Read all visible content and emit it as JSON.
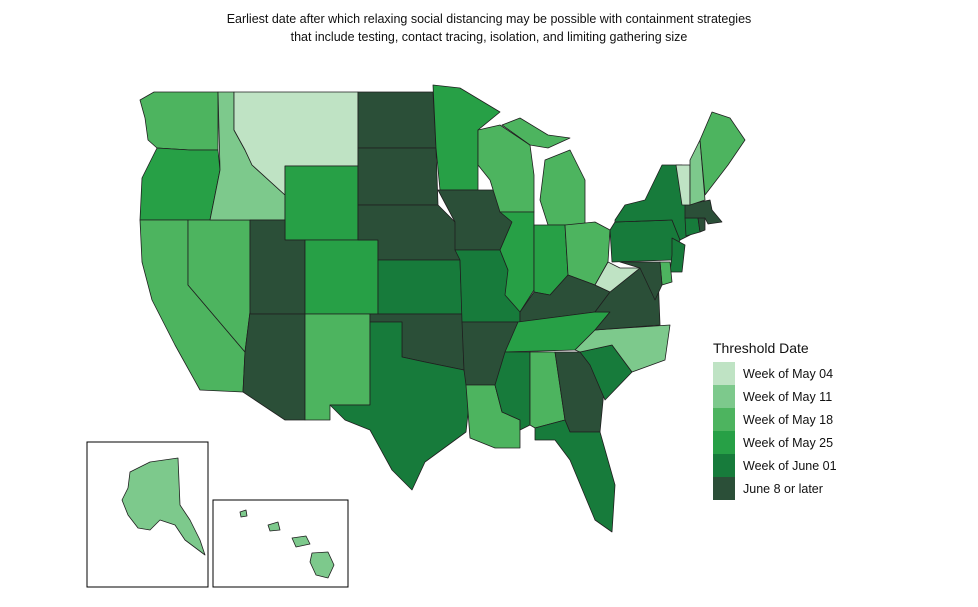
{
  "title": {
    "line1": "Earliest date after which relaxing social distancing may be possible with containment strategies",
    "line2": "that include testing, contact tracing, isolation, and limiting gathering size"
  },
  "legend": {
    "title": "Threshold Date",
    "items": [
      {
        "label": "Week of May 04",
        "color": "#bfe3c4"
      },
      {
        "label": "Week of May 11",
        "color": "#7dc98c"
      },
      {
        "label": "Week of May 18",
        "color": "#4db45f"
      },
      {
        "label": "Week of May 25",
        "color": "#27a046"
      },
      {
        "label": "Week of June 01",
        "color": "#177b3b"
      },
      {
        "label": "June 8 or later",
        "color": "#2b4f38"
      }
    ]
  },
  "state_categories": {
    "WA": 2,
    "OR": 3,
    "CA": 2,
    "NV": 2,
    "ID": 1,
    "MT": 0,
    "WY": 3,
    "UT": 5,
    "AZ": 5,
    "CO": 3,
    "NM": 2,
    "ND": 5,
    "SD": 5,
    "NE": 5,
    "KS": 4,
    "OK": 5,
    "TX": 4,
    "MN": 3,
    "IA": 5,
    "MO": 4,
    "AR": 5,
    "LA": 2,
    "WI": 2,
    "IL": 3,
    "MI": 2,
    "IN": 3,
    "OH": 2,
    "KY": 5,
    "TN": 3,
    "MS": 4,
    "AL": 2,
    "GA": 5,
    "FL": 4,
    "SC": 4,
    "NC": 1,
    "VA": 5,
    "WV": 0,
    "PA": 4,
    "NY": 4,
    "NJ": 4,
    "DE": 2,
    "MD": 5,
    "VT": 0,
    "NH": 1,
    "ME": 2,
    "MA": 5,
    "CT": 4,
    "RI": 5,
    "AK": 1,
    "HI": 1
  }
}
